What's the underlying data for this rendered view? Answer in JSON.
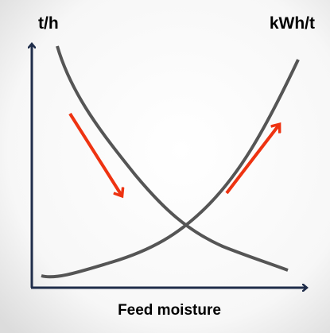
{
  "left_axis_label": "t/h",
  "right_axis_label": "kWh/t",
  "x_axis_label": "Feed moisture"
}
